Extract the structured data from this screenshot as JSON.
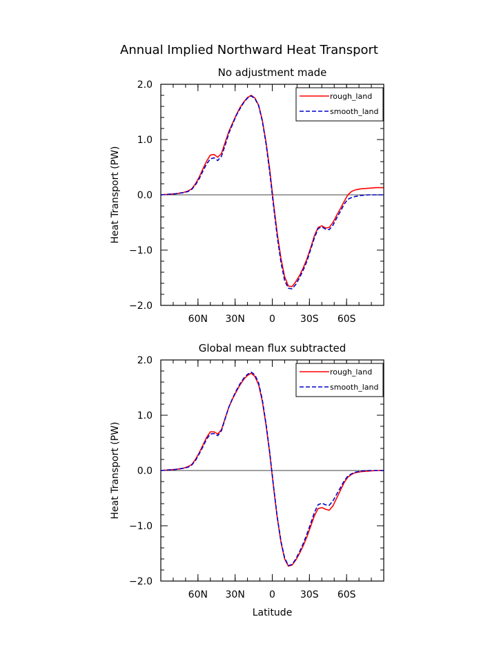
{
  "figure": {
    "title": "Annual Implied Northward Heat Transport"
  },
  "chart_data": [
    {
      "type": "line",
      "title": "No adjustment made",
      "xlabel": "",
      "ylabel": "Heat Transport (PW)",
      "xlim": [
        90,
        -90
      ],
      "ylim": [
        -2.0,
        2.0
      ],
      "x_ticks": [
        60,
        30,
        0,
        -30,
        -60
      ],
      "x_tick_labels": [
        "60N",
        "30N",
        "0",
        "30S",
        "60S"
      ],
      "y_ticks": [
        2.0,
        1.0,
        0.0,
        -1.0,
        -2.0
      ],
      "y_tick_labels": [
        "2.0",
        "1.0",
        "0.0",
        "−1.0",
        "−2.0"
      ],
      "zero_line": true,
      "legend_position": "top-right",
      "x": [
        90,
        84,
        78,
        72,
        68,
        65,
        62,
        59,
        56,
        53,
        50,
        47,
        44,
        41,
        38,
        35,
        32,
        29,
        26,
        23,
        20,
        17,
        14,
        11,
        8,
        5,
        2,
        -1,
        -4,
        -7,
        -10,
        -13,
        -16,
        -19,
        -22,
        -25,
        -28,
        -31,
        -34,
        -37,
        -40,
        -43,
        -46,
        -49,
        -52,
        -55,
        -58,
        -61,
        -64,
        -67,
        -72,
        -78,
        -84,
        -90
      ],
      "series": [
        {
          "name": "rough_land",
          "color": "#ff0000",
          "dash": "solid",
          "values": [
            0.0,
            0.01,
            0.02,
            0.04,
            0.07,
            0.11,
            0.2,
            0.32,
            0.47,
            0.61,
            0.72,
            0.73,
            0.68,
            0.75,
            0.95,
            1.15,
            1.3,
            1.45,
            1.58,
            1.68,
            1.76,
            1.8,
            1.75,
            1.62,
            1.35,
            0.95,
            0.45,
            -0.15,
            -0.7,
            -1.15,
            -1.48,
            -1.65,
            -1.66,
            -1.57,
            -1.46,
            -1.32,
            -1.16,
            -0.96,
            -0.74,
            -0.59,
            -0.56,
            -0.6,
            -0.59,
            -0.5,
            -0.37,
            -0.25,
            -0.12,
            0.0,
            0.06,
            0.09,
            0.11,
            0.12,
            0.13,
            0.13
          ]
        },
        {
          "name": "smooth_land",
          "color": "#0000cc",
          "dash": "dashed",
          "values": [
            0.0,
            0.01,
            0.02,
            0.04,
            0.06,
            0.1,
            0.18,
            0.29,
            0.43,
            0.56,
            0.65,
            0.67,
            0.62,
            0.7,
            0.9,
            1.12,
            1.28,
            1.44,
            1.56,
            1.67,
            1.75,
            1.79,
            1.74,
            1.61,
            1.33,
            0.92,
            0.4,
            -0.2,
            -0.76,
            -1.22,
            -1.55,
            -1.69,
            -1.7,
            -1.62,
            -1.5,
            -1.36,
            -1.2,
            -0.99,
            -0.78,
            -0.61,
            -0.58,
            -0.62,
            -0.63,
            -0.55,
            -0.42,
            -0.3,
            -0.17,
            -0.08,
            -0.05,
            -0.03,
            -0.01,
            0.0,
            0.0,
            0.0
          ]
        }
      ]
    },
    {
      "type": "line",
      "title": "Global mean flux subtracted",
      "xlabel": "Latitude",
      "ylabel": "Heat Transport (PW)",
      "xlim": [
        90,
        -90
      ],
      "ylim": [
        -2.0,
        2.0
      ],
      "x_ticks": [
        60,
        30,
        0,
        -30,
        -60
      ],
      "x_tick_labels": [
        "60N",
        "30N",
        "0",
        "30S",
        "60S"
      ],
      "y_ticks": [
        2.0,
        1.0,
        0.0,
        -1.0,
        -2.0
      ],
      "y_tick_labels": [
        "2.0",
        "1.0",
        "0.0",
        "−1.0",
        "−2.0"
      ],
      "zero_line": true,
      "legend_position": "top-right",
      "x": [
        90,
        84,
        78,
        72,
        68,
        65,
        62,
        59,
        56,
        53,
        50,
        47,
        44,
        41,
        38,
        35,
        32,
        29,
        26,
        23,
        20,
        17,
        14,
        11,
        8,
        5,
        2,
        -1,
        -4,
        -7,
        -10,
        -13,
        -16,
        -19,
        -22,
        -25,
        -28,
        -31,
        -34,
        -37,
        -40,
        -43,
        -46,
        -49,
        -52,
        -55,
        -58,
        -61,
        -64,
        -67,
        -72,
        -78,
        -84,
        -90
      ],
      "series": [
        {
          "name": "rough_land",
          "color": "#ff0000",
          "dash": "solid",
          "values": [
            0.0,
            0.01,
            0.02,
            0.04,
            0.07,
            0.11,
            0.2,
            0.32,
            0.46,
            0.6,
            0.7,
            0.7,
            0.66,
            0.74,
            0.95,
            1.15,
            1.3,
            1.43,
            1.55,
            1.65,
            1.72,
            1.76,
            1.7,
            1.55,
            1.25,
            0.82,
            0.3,
            -0.3,
            -0.85,
            -1.3,
            -1.6,
            -1.73,
            -1.71,
            -1.62,
            -1.5,
            -1.36,
            -1.2,
            -1.01,
            -0.82,
            -0.69,
            -0.67,
            -0.7,
            -0.72,
            -0.64,
            -0.5,
            -0.36,
            -0.22,
            -0.12,
            -0.07,
            -0.04,
            -0.02,
            -0.01,
            0.0,
            0.0
          ]
        },
        {
          "name": "smooth_land",
          "color": "#0000cc",
          "dash": "dashed",
          "values": [
            0.0,
            0.01,
            0.02,
            0.04,
            0.06,
            0.1,
            0.18,
            0.3,
            0.43,
            0.57,
            0.66,
            0.67,
            0.63,
            0.72,
            0.94,
            1.15,
            1.31,
            1.45,
            1.57,
            1.67,
            1.74,
            1.78,
            1.73,
            1.58,
            1.28,
            0.84,
            0.32,
            -0.28,
            -0.84,
            -1.28,
            -1.58,
            -1.72,
            -1.7,
            -1.6,
            -1.47,
            -1.32,
            -1.15,
            -0.96,
            -0.76,
            -0.62,
            -0.59,
            -0.62,
            -0.63,
            -0.55,
            -0.43,
            -0.31,
            -0.19,
            -0.1,
            -0.06,
            -0.03,
            -0.01,
            0.0,
            0.0,
            0.0
          ]
        }
      ]
    }
  ]
}
